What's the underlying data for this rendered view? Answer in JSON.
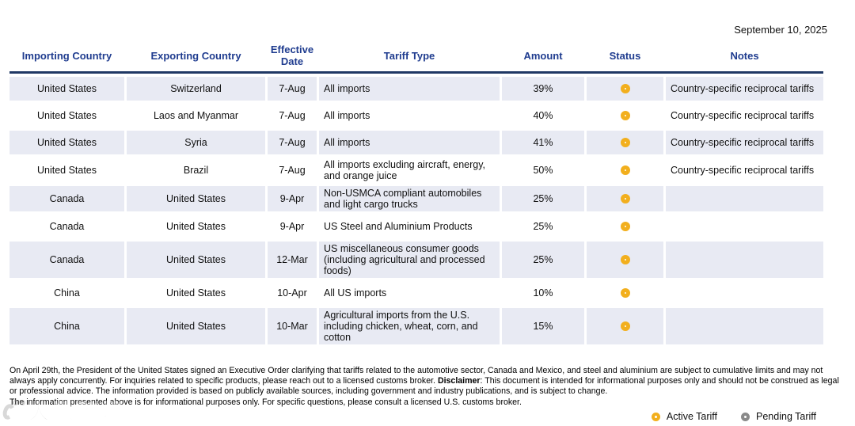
{
  "header": {
    "date": "September 10, 2025"
  },
  "table": {
    "columns": [
      "Importing Country",
      "Exporting Country",
      "Effective Date",
      "Tariff Type",
      "Amount",
      "Status",
      "Notes"
    ],
    "rows": [
      {
        "importing_country": "United States",
        "exporting_country": "Switzerland",
        "effective_date": "7-Aug",
        "tariff_type": "All imports",
        "amount": "39%",
        "status": "active",
        "notes": "Country-specific reciprocal tariffs"
      },
      {
        "importing_country": "United States",
        "exporting_country": "Laos and Myanmar",
        "effective_date": "7-Aug",
        "tariff_type": "All imports",
        "amount": "40%",
        "status": "active",
        "notes": "Country-specific reciprocal tariffs"
      },
      {
        "importing_country": "United States",
        "exporting_country": "Syria",
        "effective_date": "7-Aug",
        "tariff_type": "All imports",
        "amount": "41%",
        "status": "active",
        "notes": "Country-specific reciprocal tariffs"
      },
      {
        "importing_country": "United States",
        "exporting_country": "Brazil",
        "effective_date": "7-Aug",
        "tariff_type": "All imports excluding aircraft, energy, and orange juice",
        "amount": "50%",
        "status": "active",
        "notes": "Country-specific reciprocal tariffs"
      },
      {
        "importing_country": "Canada",
        "exporting_country": "United States",
        "effective_date": "9-Apr",
        "tariff_type": "Non-USMCA compliant automobiles and light cargo trucks",
        "amount": "25%",
        "status": "active",
        "notes": ""
      },
      {
        "importing_country": "Canada",
        "exporting_country": "United States",
        "effective_date": "9-Apr",
        "tariff_type": "US Steel and Aluminium Products",
        "amount": "25%",
        "status": "active",
        "notes": ""
      },
      {
        "importing_country": "Canada",
        "exporting_country": "United States",
        "effective_date": "12-Mar",
        "tariff_type": "US miscellaneous consumer goods (including agricultural and processed foods)",
        "amount": "25%",
        "status": "active",
        "notes": ""
      },
      {
        "importing_country": "China",
        "exporting_country": "United States",
        "effective_date": "10-Apr",
        "tariff_type": "All US imports",
        "amount": "10%",
        "status": "active",
        "notes": ""
      },
      {
        "importing_country": "China",
        "exporting_country": "United States",
        "effective_date": "10-Mar",
        "tariff_type": "Agricultural imports from the U.S. including chicken, wheat, corn, and cotton",
        "amount": "15%",
        "status": "active",
        "notes": ""
      }
    ]
  },
  "legend": {
    "active_label": "Active Tariff",
    "pending_label": "Pending Tariff"
  },
  "footer": {
    "paragraph_before_disclaimer": "On April 29th, the President of the United States signed an Executive Order clarifying that tariffs related to the automotive sector, Canada and Mexico, and steel and aluminium are subject to cumulative limits and may not always apply concurrently. For inquiries related to specific products, please reach out to a licensed customs broker. ",
    "disclaimer_label": "Disclaimer",
    "paragraph_after_disclaimer": ": This document is intended for informational purposes only and should not be construed as legal or professional advice. The information provided is based on publicly available sources, including government and industry publications, and is subject to change.",
    "note": "The information presented above is for informational purposes only. For specific questions, please consult a licensed U.S. customs broker."
  },
  "watermark": {
    "text": "大数跨境"
  },
  "colors": {
    "header_text": "#1F3C8F",
    "header_rule": "#1F3864",
    "row_shade": "#E8EAF3",
    "active_status": "#F2AF1D",
    "pending_status": "#8A8A8A"
  }
}
